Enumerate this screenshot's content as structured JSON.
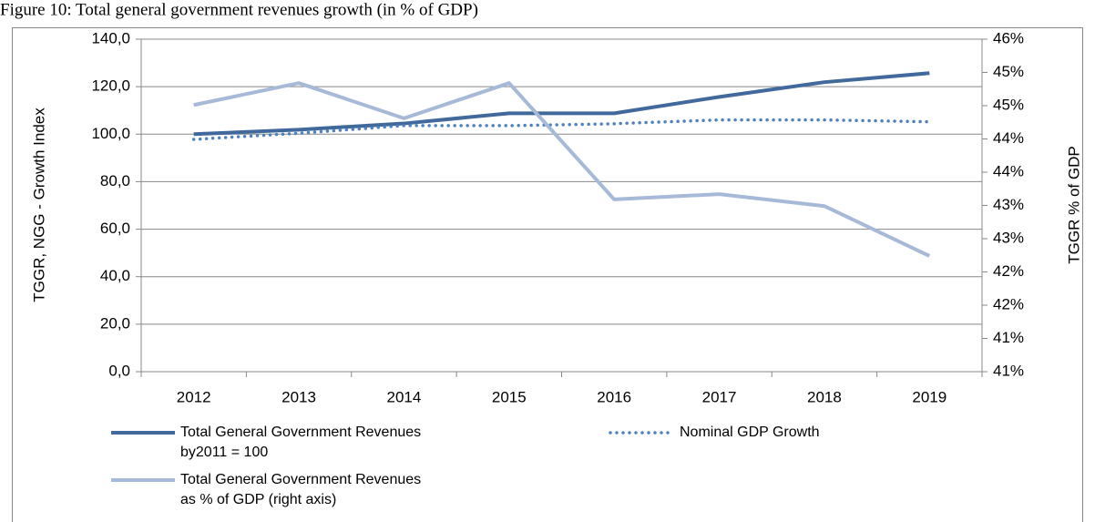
{
  "chart_data": {
    "type": "line",
    "title": "Figure 10:  Total general government revenues growth (in % of GDP)",
    "y_label": "TGGR, NGG - Growth Index",
    "y2_label": "TGGR  % of GDP",
    "categories": [
      "2012",
      "2013",
      "2014",
      "2015",
      "2016",
      "2017",
      "2018",
      "2019"
    ],
    "series": [
      {
        "name": "Total General Government Revenues\n by2011 = 100",
        "color": "#41699b",
        "style": "solid",
        "values": [
          100.0,
          101.9,
          104.5,
          108.8,
          108.8,
          115.7,
          121.9,
          125.7
        ]
      },
      {
        "name": "Nominal GDP Growth",
        "color": "#4f81bd",
        "style": "dotted",
        "values": [
          97.8,
          100.4,
          103.6,
          103.6,
          104.4,
          106.0,
          106.0,
          105.2
        ]
      },
      {
        "name": "Total General Government Revenues\n as % of GDP (right axis)",
        "color": "#a6b9d6",
        "style": "solid",
        "axis": "y2",
        "values": [
          44.51,
          44.84,
          44.31,
          44.84,
          43.09,
          43.17,
          42.99,
          42.24
        ]
      }
    ],
    "ylim": [
      0,
      140
    ],
    "yticks": [
      {
        "value": 0,
        "label": "0,0"
      },
      {
        "value": 20,
        "label": "20,0"
      },
      {
        "value": 40,
        "label": "40,0"
      },
      {
        "value": 60,
        "label": "60,0"
      },
      {
        "value": 80,
        "label": "80,0"
      },
      {
        "value": 100,
        "label": "100,0"
      },
      {
        "value": 120,
        "label": "120,0"
      },
      {
        "value": 140,
        "label": "140,0"
      }
    ],
    "y2lim": [
      40.5,
      45.5
    ],
    "y2ticks": [
      {
        "value": 40.5,
        "label": "41%"
      },
      {
        "value": 41,
        "label": "41%"
      },
      {
        "value": 41.5,
        "label": "42%"
      },
      {
        "value": 42,
        "label": "42%"
      },
      {
        "value": 42.5,
        "label": "43%"
      },
      {
        "value": 43,
        "label": "43%"
      },
      {
        "value": 43.5,
        "label": "44%"
      },
      {
        "value": 44,
        "label": "44%"
      },
      {
        "value": 44.5,
        "label": "45%"
      },
      {
        "value": 45,
        "label": "45%"
      },
      {
        "value": 45.5,
        "label": "46%"
      }
    ],
    "grid": true
  }
}
